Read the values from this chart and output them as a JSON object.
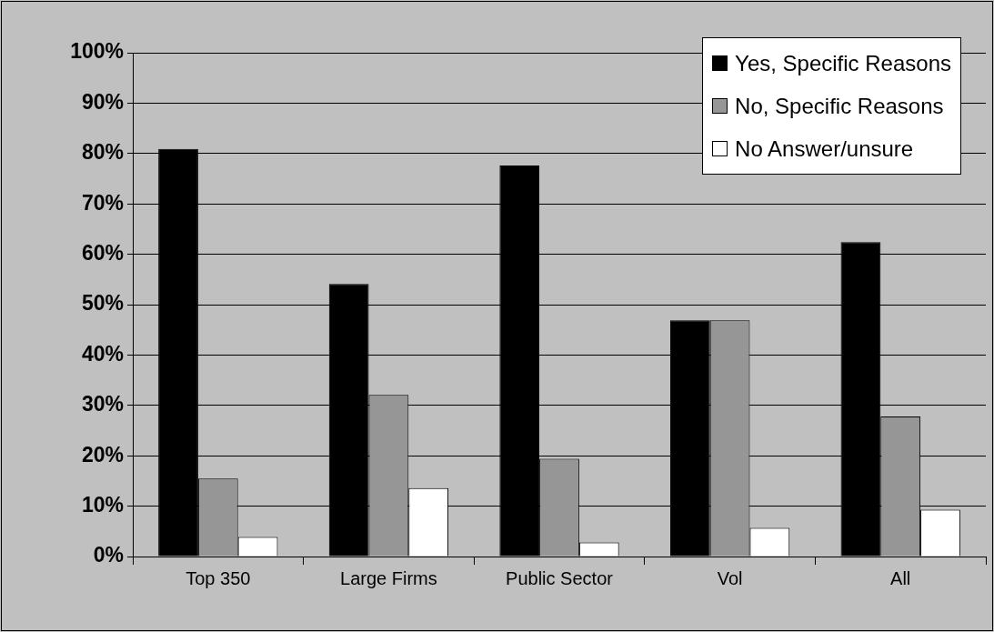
{
  "chart_data": {
    "type": "bar",
    "categories": [
      "Top 350",
      "Large Firms",
      "Public Sector",
      "Vol",
      "All"
    ],
    "series": [
      {
        "name": "Yes, Specific Reasons",
        "color": "#000000",
        "values": [
          80.9,
          54.1,
          77.6,
          46.9,
          62.4
        ]
      },
      {
        "name": "No, Specific Reasons",
        "color": "#969696",
        "values": [
          15.5,
          32.1,
          19.4,
          46.9,
          27.8
        ]
      },
      {
        "name": "No Answer/unsure",
        "color": "#ffffff",
        "values": [
          3.9,
          13.6,
          2.8,
          5.7,
          9.3
        ]
      }
    ],
    "ylim": [
      0,
      100
    ],
    "yticks": [
      {
        "value": 0,
        "label": "0%"
      },
      {
        "value": 10,
        "label": "10%"
      },
      {
        "value": 20,
        "label": "20%"
      },
      {
        "value": 30,
        "label": "30%"
      },
      {
        "value": 40,
        "label": "40%"
      },
      {
        "value": 50,
        "label": "50%"
      },
      {
        "value": 60,
        "label": "60%"
      },
      {
        "value": 70,
        "label": "70%"
      },
      {
        "value": 80,
        "label": "80%"
      },
      {
        "value": 90,
        "label": "90%"
      },
      {
        "value": 100,
        "label": "100%"
      }
    ],
    "grid": "y",
    "legend": "top right"
  }
}
